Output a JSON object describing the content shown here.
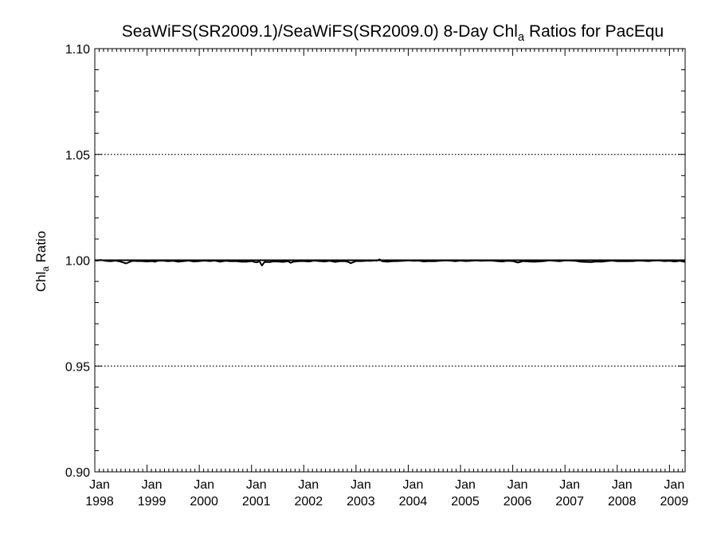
{
  "chart_data": {
    "type": "line",
    "title": {
      "pre": "SeaWiFS(SR2009.1)/SeaWiFS(SR2009.0) 8-Day Chl",
      "sub": "a",
      "post": " Ratios for PacEqu"
    },
    "ylabel": {
      "pre": "Chl",
      "sub": "a",
      "post": " Ratio"
    },
    "xlabel": "",
    "ylim": [
      0.9,
      1.1
    ],
    "xlim": [
      1998.0,
      2009.3
    ],
    "y_ticks": [
      "0.90",
      "0.95",
      "1.00",
      "1.05",
      "1.10"
    ],
    "x_ticks": [
      {
        "year": 1998,
        "label": "Jan",
        "sublabel": "1998"
      },
      {
        "year": 1999,
        "label": "Jan",
        "sublabel": "1999"
      },
      {
        "year": 2000,
        "label": "Jan",
        "sublabel": "2000"
      },
      {
        "year": 2001,
        "label": "Jan",
        "sublabel": "2001"
      },
      {
        "year": 2002,
        "label": "Jan",
        "sublabel": "2002"
      },
      {
        "year": 2003,
        "label": "Jan",
        "sublabel": "2003"
      },
      {
        "year": 2004,
        "label": "Jan",
        "sublabel": "2004"
      },
      {
        "year": 2005,
        "label": "Jan",
        "sublabel": "2005"
      },
      {
        "year": 2006,
        "label": "Jan",
        "sublabel": "2006"
      },
      {
        "year": 2007,
        "label": "Jan",
        "sublabel": "2007"
      },
      {
        "year": 2008,
        "label": "Jan",
        "sublabel": "2008"
      },
      {
        "year": 2009,
        "label": "Jan",
        "sublabel": "2009"
      }
    ],
    "grid": {
      "y_dotted_at": [
        0.95,
        1.05
      ]
    },
    "reference_line": 1.0,
    "series": [
      {
        "x": [
          1998.0,
          1998.05,
          1998.1,
          1998.15,
          1998.2,
          1998.3,
          1998.4,
          1998.5,
          1998.6,
          1998.7,
          1998.75,
          1998.8,
          1998.9,
          1999.0,
          1999.1,
          1999.15,
          1999.2,
          1999.3,
          1999.4,
          1999.5,
          1999.6,
          1999.7,
          1999.8,
          1999.9,
          2000.0,
          2000.1,
          2000.2,
          2000.3,
          2000.4,
          2000.5,
          2000.6,
          2000.7,
          2000.8,
          2000.9,
          2001.0,
          2001.05,
          2001.1,
          2001.15,
          2001.2,
          2001.25,
          2001.35,
          2001.4,
          2001.5,
          2001.6,
          2001.7,
          2001.75,
          2001.8,
          2001.9,
          2002.0,
          2002.1,
          2002.2,
          2002.3,
          2002.4,
          2002.5,
          2002.6,
          2002.7,
          2002.8,
          2002.85,
          2002.9,
          2003.0,
          2003.1,
          2003.2,
          2003.3,
          2003.35,
          2003.4,
          2003.45,
          2003.5,
          2003.6,
          2003.7,
          2003.8,
          2003.9,
          2004.0,
          2004.1,
          2004.2,
          2004.3,
          2004.4,
          2004.5,
          2004.6,
          2004.7,
          2004.8,
          2004.9,
          2005.0,
          2005.1,
          2005.2,
          2005.3,
          2005.4,
          2005.5,
          2005.6,
          2005.7,
          2005.8,
          2005.9,
          2006.0,
          2006.05,
          2006.1,
          2006.2,
          2006.3,
          2006.4,
          2006.5,
          2006.6,
          2006.7,
          2006.8,
          2006.9,
          2007.0,
          2007.1,
          2007.2,
          2007.3,
          2007.4,
          2007.5,
          2007.6,
          2007.7,
          2007.8,
          2007.9,
          2008.0,
          2008.1,
          2008.2,
          2008.3,
          2008.4,
          2008.5,
          2008.6,
          2008.7,
          2008.8,
          2008.9,
          2009.0,
          2009.1,
          2009.2,
          2009.3
        ],
        "y": [
          1.0,
          0.9998,
          1.0001,
          1.0,
          0.9997,
          0.9995,
          0.9998,
          0.9993,
          0.9985,
          0.9995,
          0.9997,
          0.9996,
          0.9996,
          0.9994,
          0.9996,
          0.9993,
          0.9997,
          0.9998,
          0.9995,
          0.9997,
          0.9993,
          0.9996,
          0.9998,
          0.9994,
          0.9996,
          0.9998,
          0.9996,
          0.9998,
          0.9993,
          0.9997,
          0.9995,
          0.9996,
          0.9993,
          0.9993,
          0.9996,
          0.9992,
          0.999,
          0.9995,
          0.9975,
          0.9992,
          0.9991,
          0.9994,
          0.9994,
          0.9992,
          0.9995,
          0.9988,
          0.9993,
          0.9995,
          0.9996,
          0.9994,
          0.9998,
          0.9996,
          0.9994,
          0.9997,
          0.9992,
          0.9996,
          0.9995,
          0.9992,
          0.9986,
          0.9996,
          0.9996,
          0.9997,
          0.9997,
          0.9999,
          0.9998,
          1.0004,
          0.9995,
          0.9993,
          0.9995,
          0.9996,
          0.9997,
          0.9999,
          0.9997,
          0.9998,
          0.9994,
          0.9996,
          0.9995,
          0.9997,
          0.9999,
          0.9998,
          0.9995,
          0.9998,
          0.9996,
          0.9997,
          0.9999,
          0.9997,
          0.9998,
          0.9998,
          0.9996,
          0.9994,
          0.9997,
          0.9996,
          0.9992,
          0.9989,
          0.9996,
          0.9994,
          0.9993,
          0.9994,
          0.9996,
          0.9999,
          0.9997,
          0.9995,
          0.9999,
          0.9998,
          0.9997,
          0.9993,
          0.9992,
          0.9991,
          0.9994,
          0.9993,
          0.9996,
          0.9998,
          0.9995,
          0.9996,
          0.9995,
          0.9996,
          0.9998,
          0.9997,
          0.9996,
          0.9998,
          0.9999,
          0.9996,
          0.9997,
          0.9994,
          0.9997,
          0.9992
        ],
        "color": "#000000"
      }
    ]
  }
}
